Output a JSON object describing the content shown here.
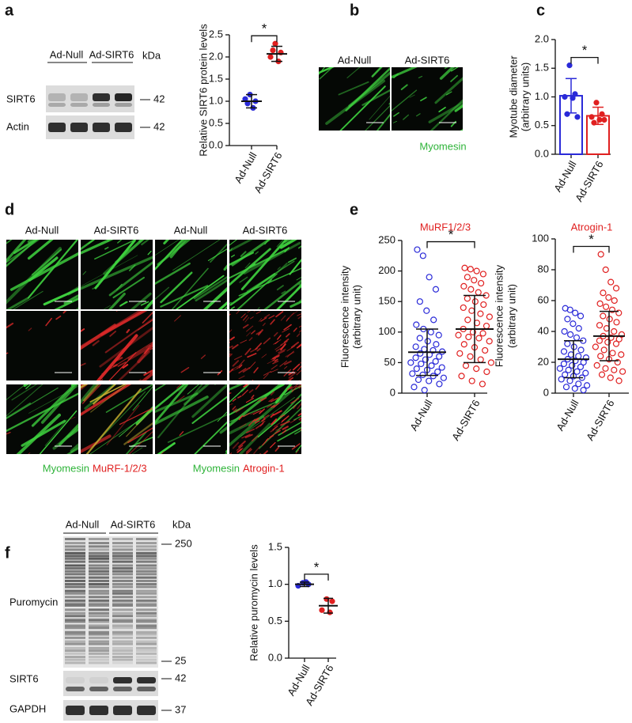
{
  "figure": {
    "panel_letters": [
      "a",
      "b",
      "c",
      "d",
      "e",
      "f"
    ],
    "a": {
      "lanes": [
        "Ad-Null",
        "Ad-SIRT6"
      ],
      "unit": "kDa",
      "rows": [
        "SIRT6",
        "Actin"
      ],
      "markers": [
        "42",
        "42"
      ]
    },
    "b": {
      "lanes": [
        "Ad-Null",
        "Ad-SIRT6"
      ],
      "stain": "Myomesin"
    },
    "d": {
      "lanes": [
        "Ad-Null",
        "Ad-SIRT6",
        "Ad-Null",
        "Ad-SIRT6"
      ],
      "captions": [
        "Myomesin",
        "MuRF-1/2/3",
        "Myomesin",
        "Atrogin-1"
      ]
    },
    "f": {
      "lanes": [
        "Ad-Null",
        "Ad-SIRT6"
      ],
      "unit": "kDa",
      "rows": [
        "Puromycin",
        "SIRT6",
        "GAPDH"
      ],
      "markers": [
        "250",
        "25",
        "42",
        "37"
      ]
    }
  },
  "chart_data": [
    {
      "type": "dotplot",
      "ylabel": [
        "Relative SIRT6 protein levels"
      ],
      "categories": [
        "Ad-Null",
        "Ad-SIRT6"
      ],
      "groups": [
        {
          "color": "#2a2ad8",
          "points": [
            1.15,
            1.0,
            1.05,
            0.85,
            0.95
          ],
          "mean": 1.0,
          "sd": 0.15
        },
        {
          "color": "#e02020",
          "points": [
            2.3,
            2.1,
            2.0,
            1.9,
            2.15
          ],
          "mean": 2.07,
          "sd": 0.17
        }
      ],
      "ylim": [
        0,
        2.5
      ],
      "yticks": [
        {
          "value": 0,
          "label": "0.0"
        },
        0.5,
        {
          "value": 1,
          "label": "1.0"
        },
        1.5,
        {
          "value": 2,
          "label": "2.0"
        },
        2.5
      ],
      "annotation": "*",
      "marker": "filled"
    },
    {
      "type": "bar",
      "ylabel": [
        "Myotube diameter",
        "(arbitrary units)"
      ],
      "categories": [
        "Ad-Null",
        "Ad-SIRT6"
      ],
      "groups": [
        {
          "color": "#2a2ad8",
          "points": [
            1.55,
            1.05,
            1.0,
            0.98,
            0.7,
            0.65
          ],
          "mean": 1.02,
          "sd": 0.3
        },
        {
          "color": "#e02020",
          "points": [
            0.9,
            0.7,
            0.65,
            0.6,
            0.55,
            0.6
          ],
          "mean": 0.67,
          "sd": 0.15
        }
      ],
      "ylim": [
        0,
        2
      ],
      "yticks": [
        {
          "value": 0,
          "label": "0.0"
        },
        0.5,
        {
          "value": 1,
          "label": "1.0"
        },
        1.5,
        {
          "value": 2,
          "label": "2.0"
        }
      ],
      "annotation": "*",
      "marker": "filled"
    },
    {
      "type": "dotplot",
      "title": "MuRF1/2/3",
      "title_color": "#e02020",
      "ylabel": [
        "Fluorescence intensity",
        "(arbitrary unit)"
      ],
      "categories": [
        "Ad-Null",
        "Ad-SIRT6"
      ],
      "groups": [
        {
          "color": "#2a2ad8",
          "points": [
            235,
            225,
            190,
            170,
            150,
            135,
            120,
            112,
            105,
            100,
            95,
            90,
            85,
            80,
            76,
            72,
            70,
            68,
            65,
            63,
            60,
            58,
            55,
            52,
            50,
            48,
            45,
            42,
            40,
            38,
            35,
            32,
            30,
            28,
            25,
            22,
            20,
            15,
            10,
            5
          ],
          "mean": 67,
          "sd": 38
        },
        {
          "color": "#e02020",
          "points": [
            205,
            203,
            200,
            195,
            190,
            185,
            180,
            175,
            170,
            165,
            160,
            155,
            150,
            145,
            140,
            135,
            130,
            125,
            120,
            115,
            110,
            105,
            100,
            98,
            95,
            92,
            90,
            85,
            80,
            75,
            70,
            65,
            60,
            55,
            50,
            45,
            40,
            35,
            28,
            20,
            15
          ],
          "mean": 105,
          "sd": 55
        }
      ],
      "ylim": [
        0,
        250
      ],
      "yticks": [
        0,
        50,
        100,
        150,
        200,
        250
      ],
      "annotation": "*",
      "marker": "open"
    },
    {
      "type": "dotplot",
      "title": "Atrogin-1",
      "title_color": "#e02020",
      "ylabel": [
        "Fluorescence intensity",
        "(arbitrary unit)"
      ],
      "categories": [
        "Ad-Null",
        "Ad-SIRT6"
      ],
      "groups": [
        {
          "color": "#2a2ad8",
          "points": [
            55,
            54,
            52,
            50,
            48,
            45,
            42,
            40,
            38,
            36,
            34,
            32,
            30,
            28,
            27,
            25,
            24,
            23,
            22,
            21,
            20,
            19,
            18,
            17,
            16,
            15,
            14,
            13,
            12,
            11,
            10,
            9,
            8,
            6,
            5,
            4,
            3,
            2
          ],
          "mean": 22,
          "sd": 12
        },
        {
          "color": "#e02020",
          "points": [
            90,
            80,
            72,
            68,
            65,
            62,
            60,
            58,
            56,
            54,
            52,
            50,
            48,
            46,
            44,
            42,
            40,
            38,
            37,
            36,
            35,
            34,
            33,
            32,
            30,
            28,
            26,
            25,
            24,
            22,
            20,
            18,
            16,
            15,
            14,
            12,
            10,
            8
          ],
          "mean": 37,
          "sd": 16
        }
      ],
      "ylim": [
        0,
        100
      ],
      "yticks": [
        0,
        20,
        40,
        60,
        80,
        100
      ],
      "annotation": "*",
      "marker": "open"
    },
    {
      "type": "dotplot",
      "ylabel": [
        "Relative puromycin levels"
      ],
      "categories": [
        "Ad-Null",
        "Ad-SIRT6"
      ],
      "groups": [
        {
          "color": "#2a2ad8",
          "points": [
            1.02,
            1.0,
            0.98,
            1.03
          ],
          "mean": 1.0,
          "sd": 0.03
        },
        {
          "color": "#e02020",
          "points": [
            0.8,
            0.77,
            0.65,
            0.62
          ],
          "mean": 0.71,
          "sd": 0.1
        }
      ],
      "ylim": [
        0,
        1.5
      ],
      "yticks": [
        {
          "value": 0,
          "label": "0.0"
        },
        0.5,
        {
          "value": 1,
          "label": "1.0"
        },
        1.5
      ],
      "annotation": "*",
      "marker": "filled"
    }
  ]
}
